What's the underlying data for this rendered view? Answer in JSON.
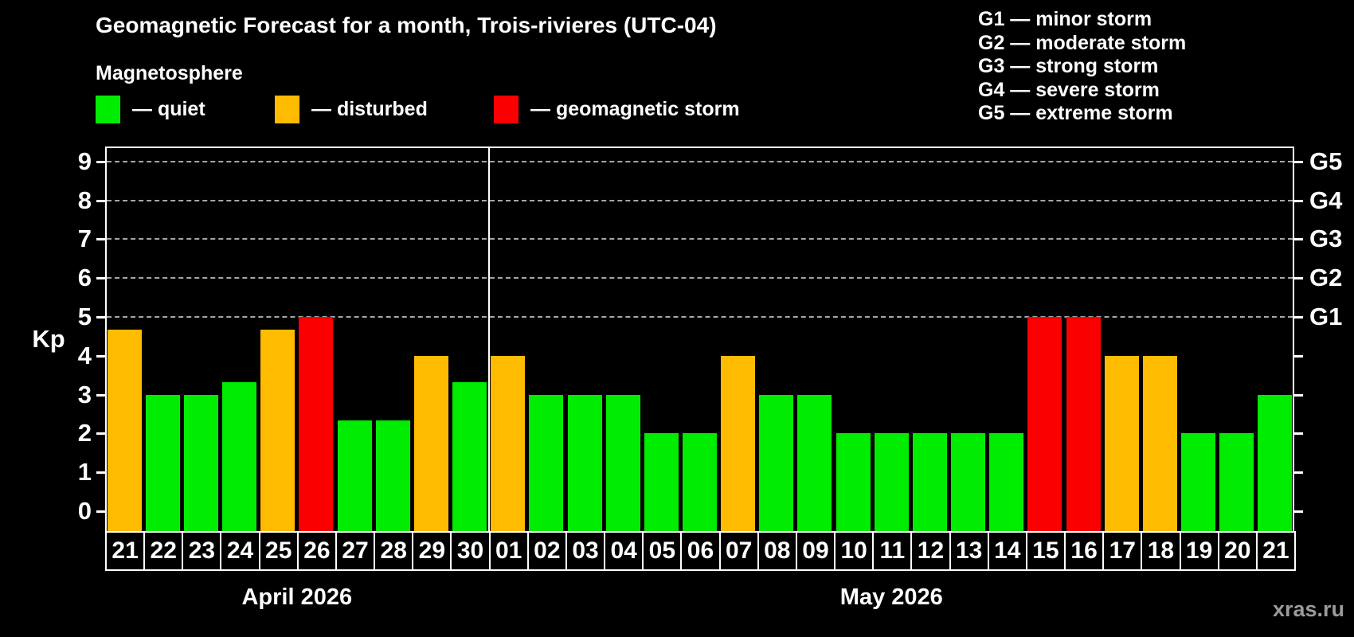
{
  "title": "Geomagnetic Forecast for a month, Trois-rivieres (UTC-04)",
  "subtitle": "Magnetosphere",
  "legend": {
    "items": [
      {
        "state": "quiet",
        "label": "— quiet",
        "color": "#00ec00"
      },
      {
        "state": "disturbed",
        "label": "— disturbed",
        "color": "#ffbb00"
      },
      {
        "state": "storm",
        "label": "— geomagnetic storm",
        "color": "#fb0000"
      }
    ]
  },
  "g_legend": {
    "lines": [
      "G1 — minor storm",
      "G2 — moderate storm",
      "G3 — strong storm",
      "G4 — severe storm",
      "G5 — extreme storm"
    ]
  },
  "watermark": "xras.ru",
  "colors": {
    "background": "#000000",
    "text": "#ffffff",
    "axis": "#ffffff",
    "grid": "#a6a6a6",
    "watermark": "#9a9a9a",
    "quiet": "#00ec00",
    "disturbed": "#ffbb00",
    "storm": "#fb0000"
  },
  "chart_data": {
    "type": "bar",
    "title": "Geomagnetic Forecast for a month, Trois-rivieres (UTC-04)",
    "xlabel": "",
    "ylabel": "Kp",
    "ylim": [
      0,
      9.4
    ],
    "y_ticks": [
      0,
      1,
      2,
      3,
      4,
      5,
      6,
      7,
      8,
      9
    ],
    "grid": "horizontal dashed lines at G-levels only",
    "legend_position": "top",
    "g_levels": [
      {
        "kp": 5,
        "label": "G1"
      },
      {
        "kp": 6,
        "label": "G2"
      },
      {
        "kp": 7,
        "label": "G3"
      },
      {
        "kp": 8,
        "label": "G4"
      },
      {
        "kp": 9,
        "label": "G5"
      }
    ],
    "months": [
      {
        "label": "April 2026",
        "days": [
          "21",
          "22",
          "23",
          "24",
          "25",
          "26",
          "27",
          "28",
          "29",
          "30"
        ]
      },
      {
        "label": "May 2026",
        "days": [
          "01",
          "02",
          "03",
          "04",
          "05",
          "06",
          "07",
          "08",
          "09",
          "10",
          "11",
          "12",
          "13",
          "14",
          "15",
          "16",
          "17",
          "18",
          "19",
          "20",
          "21"
        ]
      }
    ],
    "series": [
      {
        "name": "Kp forecast",
        "values": [
          4.67,
          3,
          3,
          3.33,
          4.67,
          5,
          2.33,
          2.33,
          4,
          3.33,
          4,
          3,
          3,
          3,
          2,
          2,
          4,
          3,
          3,
          2,
          2,
          2,
          2,
          2,
          5,
          5,
          4,
          4,
          2,
          2,
          3
        ]
      }
    ],
    "states": [
      "disturbed",
      "quiet",
      "quiet",
      "quiet",
      "disturbed",
      "storm",
      "quiet",
      "quiet",
      "disturbed",
      "quiet",
      "disturbed",
      "quiet",
      "quiet",
      "quiet",
      "quiet",
      "quiet",
      "disturbed",
      "quiet",
      "quiet",
      "quiet",
      "quiet",
      "quiet",
      "quiet",
      "quiet",
      "storm",
      "storm",
      "disturbed",
      "disturbed",
      "quiet",
      "quiet",
      "quiet"
    ]
  }
}
